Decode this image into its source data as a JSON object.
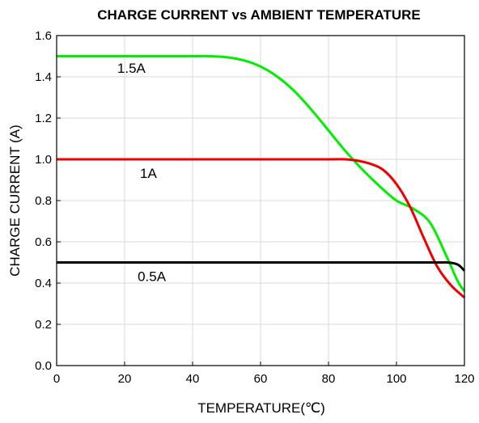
{
  "chart_data": {
    "type": "line",
    "title": "CHARGE CURRENT vs AMBIENT TEMPERATURE",
    "xlabel": "TEMPERATURE(℃)",
    "ylabel": "CHARGE CURRENT (A)",
    "xlim": [
      0,
      120
    ],
    "ylim": [
      0,
      1.6
    ],
    "x_ticks": [
      "0",
      "20",
      "40",
      "60",
      "80",
      "100",
      "120"
    ],
    "y_ticks": [
      "0.0",
      "0.2",
      "0.4",
      "0.6",
      "0.8",
      "1.0",
      "1.2",
      "1.4",
      "1.6"
    ],
    "grid": true,
    "legend": "none",
    "series": [
      {
        "name": "1.5A",
        "color": "#00ee00",
        "points": [
          [
            0,
            1.5
          ],
          [
            20,
            1.5
          ],
          [
            40,
            1.5
          ],
          [
            45,
            1.5
          ],
          [
            50,
            1.495
          ],
          [
            55,
            1.48
          ],
          [
            60,
            1.45
          ],
          [
            65,
            1.4
          ],
          [
            70,
            1.33
          ],
          [
            75,
            1.24
          ],
          [
            80,
            1.14
          ],
          [
            85,
            1.04
          ],
          [
            90,
            0.95
          ],
          [
            95,
            0.87
          ],
          [
            100,
            0.8
          ],
          [
            105,
            0.76
          ],
          [
            110,
            0.69
          ],
          [
            115,
            0.52
          ],
          [
            118,
            0.41
          ],
          [
            120,
            0.36
          ]
        ]
      },
      {
        "name": "1A",
        "color": "#ee0000",
        "points": [
          [
            0,
            1.0
          ],
          [
            20,
            1.0
          ],
          [
            40,
            1.0
          ],
          [
            60,
            1.0
          ],
          [
            80,
            1.0
          ],
          [
            85,
            1.0
          ],
          [
            88,
            0.995
          ],
          [
            92,
            0.98
          ],
          [
            96,
            0.95
          ],
          [
            100,
            0.88
          ],
          [
            104,
            0.77
          ],
          [
            108,
            0.62
          ],
          [
            112,
            0.48
          ],
          [
            116,
            0.39
          ],
          [
            120,
            0.33
          ]
        ]
      },
      {
        "name": "0.5A",
        "color": "#000000",
        "points": [
          [
            0,
            0.5
          ],
          [
            40,
            0.5
          ],
          [
            80,
            0.5
          ],
          [
            110,
            0.5
          ],
          [
            115,
            0.5
          ],
          [
            118,
            0.49
          ],
          [
            120,
            0.46
          ]
        ]
      }
    ],
    "annotations": [
      {
        "text": "1.5A",
        "x": 22,
        "y": 1.42
      },
      {
        "text": "1A",
        "x": 27,
        "y": 0.91
      },
      {
        "text": "0.5A",
        "x": 28,
        "y": 0.41
      }
    ]
  }
}
